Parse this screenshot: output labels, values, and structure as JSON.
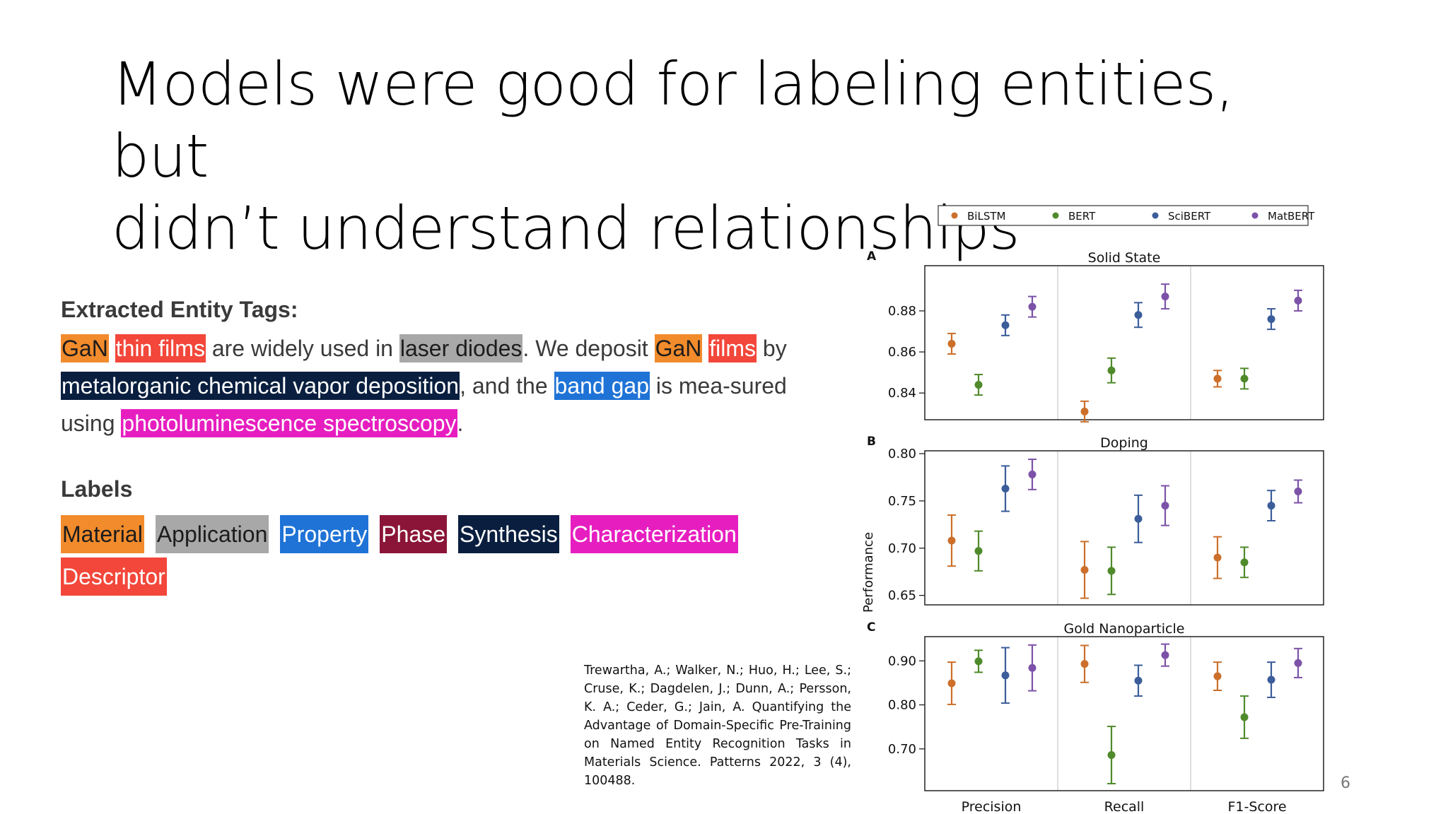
{
  "slide": {
    "title_line1": "Models were good for labeling entities, but",
    "title_line2": "didn’t understand relationships",
    "page_number": "6"
  },
  "entities": {
    "heading": "Extracted Entity Tags:",
    "labels_heading": "Labels",
    "sentence": [
      {
        "text": "GaN",
        "tag": "Material"
      },
      {
        "text": " "
      },
      {
        "text": "thin films",
        "tag": "Descriptor"
      },
      {
        "text": " are widely used in "
      },
      {
        "text": "laser diodes",
        "tag": "Application"
      },
      {
        "text": ". We deposit "
      },
      {
        "text": "GaN",
        "tag": "Material"
      },
      {
        "text": " "
      },
      {
        "text": "films",
        "tag": "Descriptor"
      },
      {
        "text": " by "
      },
      {
        "text": "metalorganic chemical vapor deposition",
        "tag": "Synthesis"
      },
      {
        "text": ", and the "
      },
      {
        "text": "band gap",
        "tag": "Property"
      },
      {
        "text": " is mea-sured using "
      },
      {
        "text": "photoluminescence spectroscopy",
        "tag": "Characterization"
      },
      {
        "text": "."
      }
    ],
    "labels": [
      {
        "name": "Material",
        "color": "#f28b2c",
        "dark_text": true
      },
      {
        "name": "Application",
        "color": "#a8a8a8",
        "dark_text": true
      },
      {
        "name": "Property",
        "color": "#1f73d6",
        "dark_text": false
      },
      {
        "name": "Phase",
        "color": "#8a1538",
        "dark_text": false
      },
      {
        "name": "Synthesis",
        "color": "#0a1f3f",
        "dark_text": false
      },
      {
        "name": "Characterization",
        "color": "#e61ec0",
        "dark_text": false
      },
      {
        "name": "Descriptor",
        "color": "#f2473a",
        "dark_text": false
      }
    ]
  },
  "citation": "Trewartha, A.; Walker, N.; Huo, H.; Lee, S.; Cruse, K.; Dagdelen, J.; Dunn, A.; Persson, K. A.; Ceder, G.; Jain, A. Quantifying the Advantage of Domain-Specific Pre-Training on Named Entity Recognition Tasks in Materials Science. Patterns 2022, 3 (4), 100488.",
  "chart_data": {
    "type": "scatter",
    "ylabel": "Performance",
    "categories": [
      "Precision",
      "Recall",
      "F1-Score"
    ],
    "legend": {
      "placement": "top"
    },
    "series_names": [
      "BiLSTM",
      "BERT",
      "SciBERT",
      "MatBERT"
    ],
    "series_colors": [
      "#cc6f2a",
      "#4f8a2b",
      "#3b5d9a",
      "#7c52a8"
    ],
    "panels": [
      {
        "letter": "A",
        "title": "Solid State",
        "ylim": [
          0.827,
          0.902
        ],
        "yticks": [
          {
            "v": 0.84,
            "label": "0.84"
          },
          {
            "v": 0.86,
            "label": "0.86"
          },
          {
            "v": 0.88,
            "label": "0.88"
          }
        ],
        "values": {
          "BiLSTM": [
            [
              0.864,
              0.005
            ],
            [
              0.831,
              0.005
            ],
            [
              0.847,
              0.004
            ]
          ],
          "BERT": [
            [
              0.844,
              0.005
            ],
            [
              0.851,
              0.006
            ],
            [
              0.847,
              0.005
            ]
          ],
          "SciBERT": [
            [
              0.873,
              0.005
            ],
            [
              0.878,
              0.006
            ],
            [
              0.876,
              0.005
            ]
          ],
          "MatBERT": [
            [
              0.882,
              0.005
            ],
            [
              0.887,
              0.006
            ],
            [
              0.885,
              0.005
            ]
          ]
        }
      },
      {
        "letter": "B",
        "title": "Doping",
        "ylim": [
          0.64,
          0.803
        ],
        "yticks": [
          {
            "v": 0.65,
            "label": "0.65"
          },
          {
            "v": 0.7,
            "label": "0.70"
          },
          {
            "v": 0.75,
            "label": "0.75"
          },
          {
            "v": 0.8,
            "label": "0.80"
          }
        ],
        "values": {
          "BiLSTM": [
            [
              0.708,
              0.027
            ],
            [
              0.677,
              0.03
            ],
            [
              0.69,
              0.022
            ]
          ],
          "BERT": [
            [
              0.697,
              0.021
            ],
            [
              0.676,
              0.025
            ],
            [
              0.685,
              0.016
            ]
          ],
          "SciBERT": [
            [
              0.763,
              0.024
            ],
            [
              0.731,
              0.025
            ],
            [
              0.745,
              0.016
            ]
          ],
          "MatBERT": [
            [
              0.778,
              0.016
            ],
            [
              0.745,
              0.021
            ],
            [
              0.76,
              0.012
            ]
          ]
        }
      },
      {
        "letter": "C",
        "title": "Gold Nanoparticle",
        "ylim": [
          0.605,
          0.955
        ],
        "yticks": [
          {
            "v": 0.7,
            "label": "0.70"
          },
          {
            "v": 0.8,
            "label": "0.80"
          },
          {
            "v": 0.9,
            "label": "0.90"
          }
        ],
        "values": {
          "BiLSTM": [
            [
              0.849,
              0.048
            ],
            [
              0.893,
              0.042
            ],
            [
              0.865,
              0.032
            ]
          ],
          "BERT": [
            [
              0.899,
              0.025
            ],
            [
              0.686,
              0.065
            ],
            [
              0.772,
              0.048
            ]
          ],
          "SciBERT": [
            [
              0.867,
              0.063
            ],
            [
              0.855,
              0.035
            ],
            [
              0.857,
              0.04
            ]
          ],
          "MatBERT": [
            [
              0.884,
              0.052
            ],
            [
              0.913,
              0.025
            ],
            [
              0.895,
              0.033
            ]
          ]
        }
      }
    ]
  }
}
